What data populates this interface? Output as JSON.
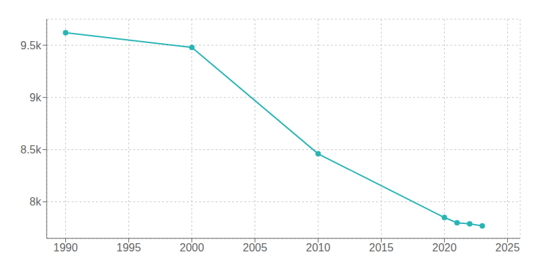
{
  "chart_data": {
    "type": "line",
    "x": [
      1990,
      2000,
      2010,
      2020,
      2021,
      2022,
      2023
    ],
    "values": [
      9620,
      9480,
      8460,
      7850,
      7800,
      7790,
      7770
    ],
    "color": "#2ab5b5",
    "marker": "circle",
    "xlim": [
      1988.5,
      2026
    ],
    "ylim": [
      7650,
      9750
    ],
    "xticks": [
      1990,
      1995,
      2000,
      2005,
      2010,
      2015,
      2020,
      2025
    ],
    "yticks": [
      {
        "value": 8000,
        "label": "8k"
      },
      {
        "value": 8500,
        "label": "8.5k"
      },
      {
        "value": 9000,
        "label": "9k"
      },
      {
        "value": 9500,
        "label": "9.5k"
      }
    ],
    "grid": true
  }
}
